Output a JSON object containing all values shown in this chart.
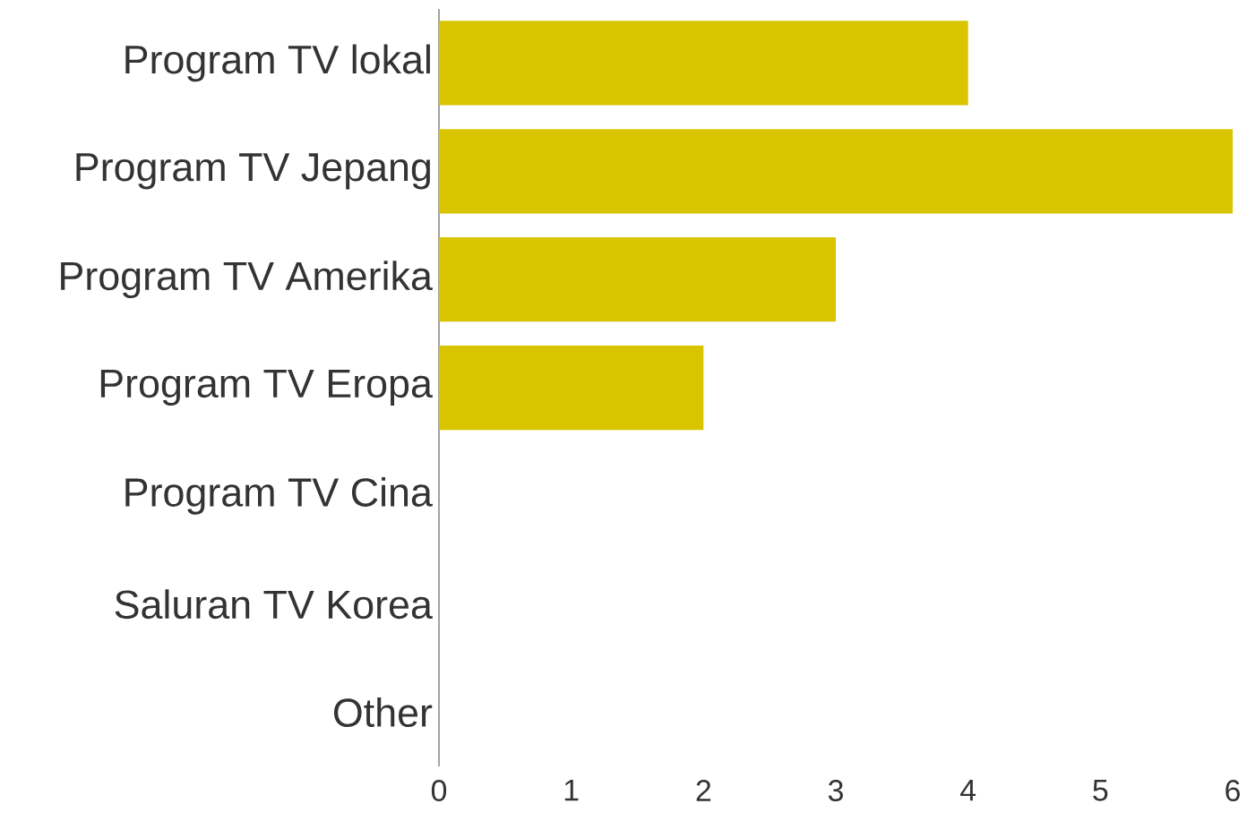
{
  "chart_data": {
    "type": "bar",
    "orientation": "horizontal",
    "categories": [
      "Program TV lokal",
      "Program TV Jepang",
      "Program TV Amerika",
      "Program TV Eropa",
      "Program TV Cina",
      "Saluran TV Korea",
      "Other"
    ],
    "values": [
      4,
      6,
      3,
      2,
      0,
      0,
      0
    ],
    "color": "#d9c400",
    "xlim": [
      0,
      6
    ],
    "xticks": [
      0,
      1,
      2,
      3,
      4,
      5,
      6
    ]
  }
}
